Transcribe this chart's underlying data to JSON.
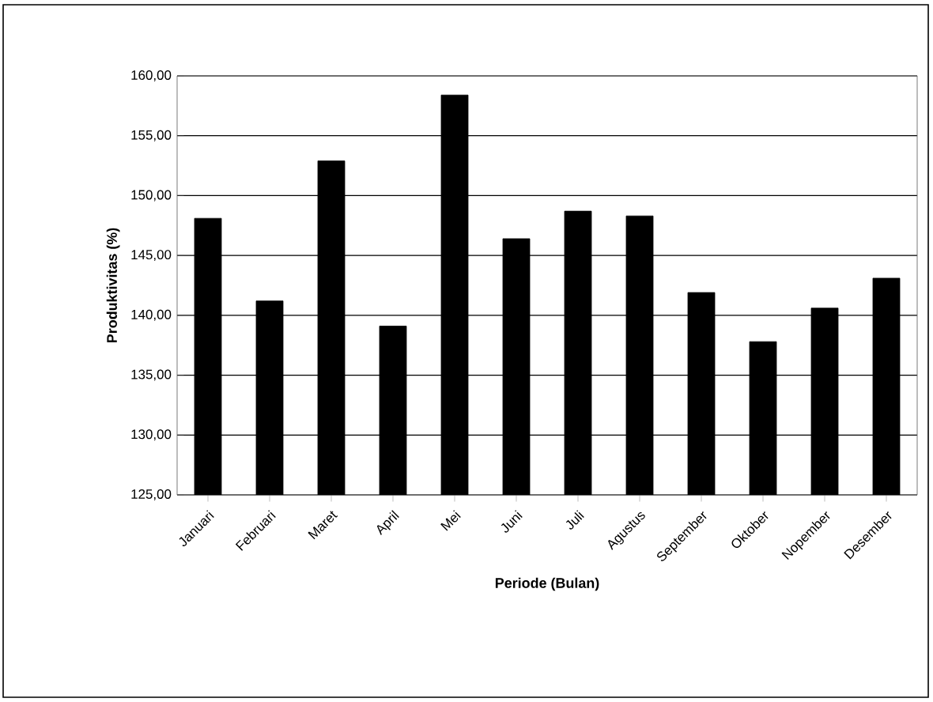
{
  "chart_data": {
    "type": "bar",
    "xlabel": "Periode (Bulan)",
    "ylabel": "Produktivitas (%)",
    "categories": [
      "Januari",
      "Februari",
      "Maret",
      "April",
      "Mei",
      "Juni",
      "Juli",
      "Agustus",
      "September",
      "Oktober",
      "Nopember",
      "Desember"
    ],
    "values": [
      148.1,
      141.2,
      152.9,
      139.1,
      158.4,
      146.4,
      148.7,
      148.3,
      141.9,
      137.8,
      140.6,
      143.1
    ],
    "color": "#000000",
    "ylim": [
      125,
      160
    ],
    "yticks": [
      {
        "value": 125,
        "label": "125,00"
      },
      {
        "value": 130,
        "label": "130,00"
      },
      {
        "value": 135,
        "label": "135,00"
      },
      {
        "value": 140,
        "label": "140,00"
      },
      {
        "value": 145,
        "label": "145,00"
      },
      {
        "value": 150,
        "label": "150,00"
      },
      {
        "value": 155,
        "label": "155,00"
      },
      {
        "value": 160,
        "label": "160,00"
      }
    ],
    "grid": "y"
  }
}
